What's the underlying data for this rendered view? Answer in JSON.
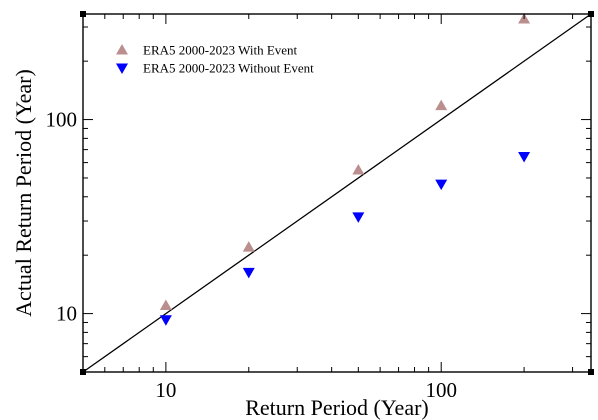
{
  "chart_data": {
    "type": "scatter",
    "xlabel": "Return Period (Year)",
    "ylabel": "Actual Return Period (Year)",
    "xscale": "log",
    "yscale": "log",
    "xlim": [
      5,
      350
    ],
    "ylim": [
      5,
      350
    ],
    "xticks": [
      {
        "value": 10,
        "label": "10"
      },
      {
        "value": 100,
        "label": "100"
      }
    ],
    "yticks": [
      {
        "value": 10,
        "label": "10"
      },
      {
        "value": 100,
        "label": "100"
      }
    ],
    "grid": false,
    "legend_position": "top-left",
    "reference_line": {
      "type": "y=x",
      "color": "#000000"
    },
    "series": [
      {
        "name": "ERA5 2000-2023 With Event",
        "marker": "triangle-up",
        "color": "#bc8f8f",
        "x": [
          10,
          20,
          50,
          100,
          200
        ],
        "y": [
          11,
          22,
          55,
          118,
          330
        ]
      },
      {
        "name": "ERA5 2000-2023 Without Event",
        "marker": "triangle-down",
        "color": "#0000ff",
        "x": [
          10,
          20,
          50,
          100,
          200
        ],
        "y": [
          9.3,
          16.3,
          31.5,
          46.5,
          64.5
        ]
      }
    ]
  }
}
